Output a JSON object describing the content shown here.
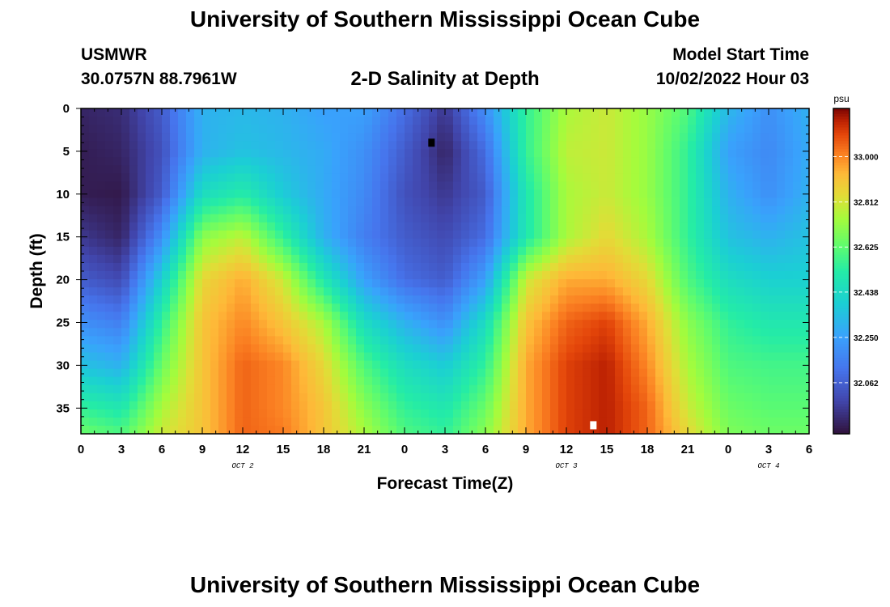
{
  "header": {
    "title": "University of Southern Mississippi Ocean Cube",
    "station": "USMWR",
    "coords": "30.0757N  88.7961W",
    "subtitle": "2-D Salinity at Depth",
    "start_label": "Model Start Time",
    "start_value": "10/02/2022 Hour 03"
  },
  "footer": {
    "title": "University of Southern Mississippi Ocean Cube"
  },
  "chart_data": {
    "type": "heatmap",
    "title": "2-D Salinity at Depth",
    "xlabel": "Forecast Time(Z)",
    "ylabel": "Depth (ft)",
    "x_hours_range": [
      0,
      54
    ],
    "x_tick_labels": [
      "0",
      "3",
      "6",
      "9",
      "12",
      "15",
      "18",
      "21",
      "0",
      "3",
      "6",
      "9",
      "12",
      "15",
      "18",
      "21",
      "0",
      "3",
      "6"
    ],
    "date_labels": [
      {
        "label": "OCT 2",
        "hour": 12
      },
      {
        "label": "OCT 3",
        "hour": 36
      },
      {
        "label": "OCT 4",
        "hour": 51
      }
    ],
    "ylim": [
      0,
      38
    ],
    "y_tick_labels": [
      "0",
      "5",
      "10",
      "15",
      "20",
      "25",
      "30",
      "35"
    ],
    "colorbar": {
      "unit": "psu",
      "range": [
        31.85,
        33.2
      ],
      "tick_labels": [
        "33.000",
        "32.812",
        "32.625",
        "32.438",
        "32.250",
        "32.062"
      ]
    },
    "features": [
      {
        "kind": "low_salinity_max_marker",
        "hour": 26,
        "depth_ft": 4,
        "color": "#000000"
      },
      {
        "kind": "high_salinity_max_marker",
        "hour": 38,
        "depth_ft": 37,
        "color": "#ffffff"
      }
    ],
    "depth_ft_grid": [
      0,
      5,
      10,
      15,
      20,
      25,
      30,
      35,
      38
    ],
    "hour_grid": [
      0,
      3,
      6,
      9,
      12,
      15,
      18,
      21,
      24,
      27,
      30,
      33,
      36,
      39,
      42,
      45,
      48,
      51,
      54
    ],
    "salinity_psu": [
      [
        31.9,
        31.92,
        32.05,
        32.3,
        32.32,
        32.3,
        32.25,
        32.25,
        32.1,
        31.95,
        32.2,
        32.55,
        32.75,
        32.8,
        32.72,
        32.6,
        32.32,
        32.2,
        32.3
      ],
      [
        31.88,
        31.9,
        32.02,
        32.3,
        32.35,
        32.32,
        32.28,
        32.2,
        32.05,
        31.9,
        32.1,
        32.55,
        32.78,
        32.8,
        32.72,
        32.55,
        32.25,
        32.18,
        32.28
      ],
      [
        31.88,
        31.87,
        32.05,
        32.45,
        32.52,
        32.38,
        32.28,
        32.18,
        32.02,
        31.95,
        32.05,
        32.5,
        32.75,
        32.8,
        32.72,
        32.55,
        32.3,
        32.2,
        32.3
      ],
      [
        31.95,
        31.9,
        32.2,
        32.7,
        32.78,
        32.55,
        32.3,
        32.15,
        32.05,
        32.0,
        32.1,
        32.5,
        32.75,
        32.85,
        32.75,
        32.55,
        32.35,
        32.3,
        32.35
      ],
      [
        32.05,
        32.0,
        32.4,
        32.85,
        32.95,
        32.8,
        32.5,
        32.25,
        32.1,
        32.05,
        32.25,
        32.8,
        32.95,
        32.95,
        32.85,
        32.6,
        32.45,
        32.4,
        32.4
      ],
      [
        32.2,
        32.15,
        32.55,
        32.9,
        33.0,
        32.9,
        32.75,
        32.45,
        32.3,
        32.2,
        32.45,
        32.9,
        33.05,
        33.1,
        32.95,
        32.7,
        32.55,
        32.5,
        32.5
      ],
      [
        32.35,
        32.3,
        32.65,
        32.9,
        33.05,
        33.0,
        32.85,
        32.6,
        32.45,
        32.38,
        32.55,
        32.95,
        33.1,
        33.15,
        33.0,
        32.75,
        32.6,
        32.58,
        32.58
      ],
      [
        32.55,
        32.5,
        32.75,
        32.9,
        33.05,
        33.0,
        32.9,
        32.7,
        32.55,
        32.5,
        32.65,
        32.95,
        33.1,
        33.15,
        33.05,
        32.8,
        32.65,
        32.62,
        32.62
      ],
      [
        32.65,
        32.6,
        32.8,
        32.9,
        33.05,
        33.02,
        32.9,
        32.75,
        32.6,
        32.55,
        32.7,
        32.95,
        33.1,
        33.15,
        33.05,
        32.85,
        32.68,
        32.65,
        32.65
      ]
    ]
  }
}
